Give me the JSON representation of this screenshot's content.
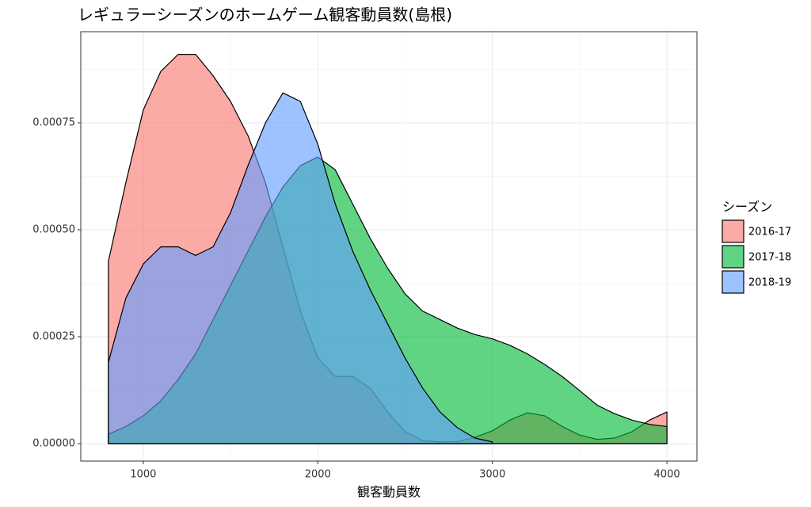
{
  "chart_data": {
    "type": "density",
    "title": "レギュラーシーズンのホームゲーム観客動員数(島根)",
    "xlabel": "観客動員数",
    "legend_title": "シーズン",
    "legend": "right",
    "grid": true,
    "x": [
      800,
      900,
      1000,
      1100,
      1200,
      1300,
      1400,
      1500,
      1600,
      1700,
      1800,
      1900,
      2000,
      2100,
      2200,
      2300,
      2400,
      2500,
      2600,
      2700,
      2800,
      2900,
      3000,
      3100,
      3200,
      3300,
      3400,
      3500,
      3600,
      3700,
      3800,
      3900,
      4000
    ],
    "series": [
      {
        "name": "2016-17",
        "color": "#F8766D",
        "values": [
          0.000426,
          0.00061,
          0.00078,
          0.00087,
          0.00091,
          0.00091,
          0.00086,
          0.0008,
          0.00072,
          0.00061,
          0.00046,
          0.00031,
          0.0002,
          0.000157,
          0.000157,
          0.00013,
          7.4e-05,
          2.8e-05,
          7e-06,
          4e-06,
          5e-06,
          1.5e-05,
          3e-05,
          5.5e-05,
          7.2e-05,
          6.5e-05,
          4e-05,
          2e-05,
          1e-05,
          1.3e-05,
          2.8e-05,
          5.5e-05,
          7.4e-05
        ]
      },
      {
        "name": "2017-18",
        "color": "#00BA38",
        "values": [
          2.2e-05,
          4e-05,
          6.5e-05,
          0.0001,
          0.00015,
          0.00021,
          0.00029,
          0.00037,
          0.00045,
          0.00053,
          0.0006,
          0.00065,
          0.00067,
          0.00064,
          0.00056,
          0.00048,
          0.00041,
          0.00035,
          0.00031,
          0.00029,
          0.00027,
          0.000255,
          0.000245,
          0.00023,
          0.00021,
          0.000185,
          0.000157,
          0.000124,
          9e-05,
          7e-05,
          5.5e-05,
          4.5e-05,
          4e-05
        ]
      },
      {
        "name": "2018-19",
        "color": "#619CFF",
        "values": [
          0.00019,
          0.00034,
          0.00042,
          0.00046,
          0.00046,
          0.00044,
          0.00046,
          0.00054,
          0.00065,
          0.00075,
          0.00082,
          0.0008,
          0.0007,
          0.00056,
          0.00045,
          0.00036,
          0.00028,
          0.0002,
          0.00013,
          7.4e-05,
          3.7e-05,
          1.3e-05,
          4e-06,
          null,
          null,
          null,
          null,
          null,
          null,
          null,
          null,
          null,
          null
        ]
      }
    ],
    "xlim": [
      642,
      4172
    ],
    "ylim": [
      -4.07e-05,
      0.000963
    ],
    "xticks": [
      1000,
      2000,
      3000,
      4000
    ],
    "yticks": [
      {
        "value": 0,
        "label": "0.00000"
      },
      {
        "value": 0.00025,
        "label": "0.00025"
      },
      {
        "value": 0.0005,
        "label": "0.00050"
      },
      {
        "value": 0.00075,
        "label": "0.00075"
      }
    ],
    "xminor": [
      1500,
      2500,
      3500
    ],
    "yminor": [
      0.000125,
      0.000375,
      0.000625,
      0.000875
    ]
  }
}
